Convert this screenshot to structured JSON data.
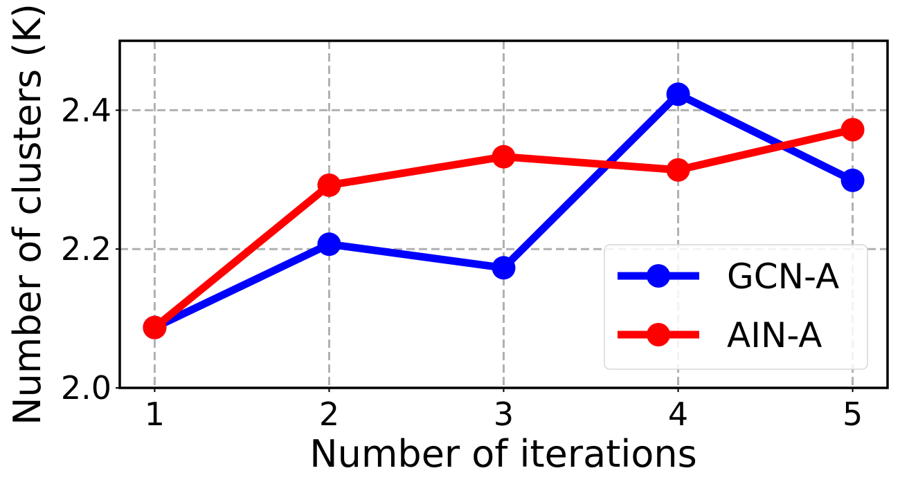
{
  "chart_data": {
    "type": "line",
    "xlabel": "Number of iterations",
    "ylabel": "Number of clusters (K)",
    "x": [
      1,
      2,
      3,
      4,
      5
    ],
    "x_tick_labels": [
      "1",
      "2",
      "3",
      "4",
      "5"
    ],
    "xlim": [
      0.8,
      5.2
    ],
    "ylim": [
      2.0,
      2.5
    ],
    "y_ticks": [
      2.0,
      2.2,
      2.4
    ],
    "y_tick_labels": [
      "2.0",
      "2.2",
      "2.4"
    ],
    "grid": true,
    "legend_position": "lower-right",
    "series": [
      {
        "name": "GCN-A",
        "color": "#0000ff",
        "values": [
          2.087,
          2.207,
          2.173,
          2.423,
          2.299
        ]
      },
      {
        "name": "AIN-A",
        "color": "#ff0000",
        "values": [
          2.087,
          2.292,
          2.333,
          2.314,
          2.372
        ]
      }
    ]
  }
}
